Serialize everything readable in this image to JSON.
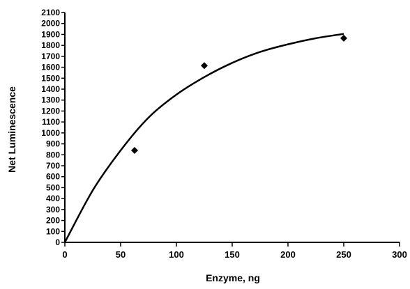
{
  "chart_data": {
    "type": "scatter",
    "title": "",
    "xlabel": "Enzyme, ng",
    "ylabel": "Net Luminescence",
    "xlim": [
      0,
      300
    ],
    "ylim": [
      0,
      2100
    ],
    "xticks": [
      0,
      50,
      100,
      150,
      200,
      250,
      300
    ],
    "yticks": [
      0,
      100,
      200,
      300,
      400,
      500,
      600,
      700,
      800,
      900,
      1000,
      1100,
      1200,
      1300,
      1400,
      1500,
      1600,
      1700,
      1800,
      1900,
      2000,
      2100
    ],
    "grid": false,
    "series": [
      {
        "kind": "points",
        "marker": "diamond",
        "x": [
          62.5,
          125,
          250
        ],
        "y": [
          840,
          1615,
          1865
        ]
      },
      {
        "kind": "fitted-curve",
        "x": [
          0,
          25,
          50,
          75,
          100,
          125,
          150,
          175,
          200,
          225,
          250
        ],
        "y": [
          0,
          475,
          840,
          1140,
          1350,
          1510,
          1640,
          1740,
          1810,
          1865,
          1905
        ]
      }
    ],
    "colors": {
      "marks": "#000000",
      "background": "#ffffff"
    }
  }
}
